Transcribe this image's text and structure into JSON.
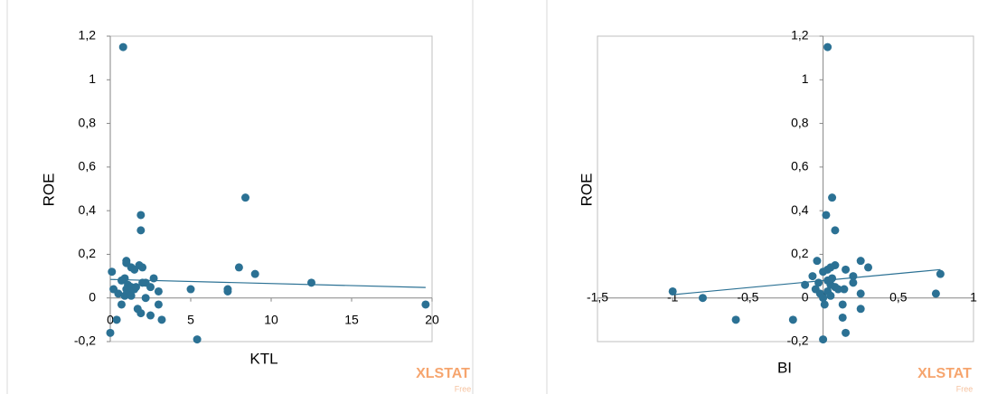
{
  "chart_data": [
    {
      "type": "scatter",
      "xlabel": "KTL",
      "ylabel": "ROE",
      "color": "#2b7194",
      "trend_color": "#2b7194",
      "x": [
        0.8,
        8.4,
        1.9,
        1.9,
        8,
        9,
        12.5,
        19.6,
        7.3,
        7.3,
        5,
        5.4,
        0,
        0.1,
        0.2,
        0.4,
        0.7,
        1,
        1,
        1.3,
        1.5,
        1.8,
        2,
        0.9,
        1.1,
        1.3,
        1.5,
        1.6,
        0.5,
        0.9,
        1.3,
        1.7,
        1.9,
        2.5,
        3.2,
        2.2,
        2.2,
        2.5,
        2.7,
        3,
        3,
        1.2,
        1,
        0.7,
        2
      ],
      "values": [
        1.15,
        0.46,
        0.38,
        0.31,
        0.14,
        0.11,
        0.07,
        -0.03,
        0.04,
        0.03,
        0.04,
        -0.19,
        -0.16,
        0.12,
        0.04,
        -0.1,
        -0.03,
        0.17,
        0.16,
        0.14,
        0.13,
        0.15,
        0.14,
        0.09,
        0.06,
        0.05,
        0.04,
        0.05,
        0.02,
        0.01,
        0.01,
        -0.05,
        -0.07,
        -0.08,
        -0.1,
        0,
        0.07,
        0.05,
        0.09,
        0.03,
        -0.03,
        0.03,
        0.04,
        0.08,
        0.07
      ],
      "trend": {
        "x": [
          0,
          19.6
        ],
        "values": [
          0.085,
          0.048
        ]
      },
      "xlim": [
        0,
        20
      ],
      "xticks": [
        0,
        5,
        10,
        15,
        20
      ],
      "ylim": [
        -0.2,
        1.2
      ],
      "yticks": [
        {
          "value": -0.2,
          "label": "-0,2"
        },
        0,
        {
          "value": 0.2,
          "label": "0,2"
        },
        {
          "value": 0.4,
          "label": "0,4"
        },
        {
          "value": 0.6,
          "label": "0,6"
        },
        {
          "value": 0.8,
          "label": "0,8"
        },
        1,
        {
          "value": 1.2,
          "label": "1,2"
        }
      ],
      "annotations": [
        "XLSTAT",
        "Free"
      ]
    },
    {
      "type": "scatter",
      "xlabel": "BI",
      "ylabel": "ROE",
      "color": "#2b7194",
      "trend_color": "#2b7194",
      "x": [
        0.03,
        0.06,
        0.02,
        0.08,
        -0.04,
        0.25,
        0.3,
        0.78,
        0.75,
        -1,
        -0.8,
        -0.58,
        -0.2,
        -0.12,
        0,
        0.15,
        0.13,
        0.25,
        0.25,
        0.2,
        0.2,
        0.15,
        0.08,
        0.03,
        0,
        0.05,
        -0.05,
        -0.02,
        0,
        0.03,
        0.05,
        0.08,
        0.1,
        0.14,
        0.01,
        0.03,
        0.06,
        -0.03,
        0.13,
        -0.07,
        0.05
      ],
      "values": [
        1.15,
        0.46,
        0.38,
        0.31,
        0.17,
        0.17,
        0.14,
        0.11,
        0.02,
        0.03,
        0,
        -0.1,
        -0.1,
        0.06,
        -0.19,
        -0.16,
        -0.09,
        -0.05,
        0.02,
        0.07,
        0.1,
        0.13,
        0.15,
        0.13,
        0.12,
        0.14,
        0.04,
        0.02,
        0,
        0.03,
        0.06,
        0.05,
        0.04,
        0.04,
        -0.03,
        0.08,
        0.09,
        0.07,
        -0.03,
        0.1,
        0.01
      ],
      "trend": {
        "x": [
          -1,
          0.78
        ],
        "values": [
          0.015,
          0.13
        ]
      },
      "xlim": [
        -1.5,
        1
      ],
      "xticks": [
        {
          "value": -1.5,
          "label": "-1,5"
        },
        -1,
        {
          "value": -0.5,
          "label": "-0,5"
        },
        0,
        {
          "value": 0.5,
          "label": "0,5"
        },
        1
      ],
      "ylim": [
        -0.2,
        1.2
      ],
      "yticks": [
        {
          "value": -0.2,
          "label": "-0,2"
        },
        0,
        {
          "value": 0.2,
          "label": "0,2"
        },
        {
          "value": 0.4,
          "label": "0,4"
        },
        {
          "value": 0.6,
          "label": "0,6"
        },
        {
          "value": 0.8,
          "label": "0,8"
        },
        1,
        {
          "value": 1.2,
          "label": "1,2"
        }
      ],
      "annotations": [
        "XLSTAT",
        "Free"
      ]
    }
  ]
}
